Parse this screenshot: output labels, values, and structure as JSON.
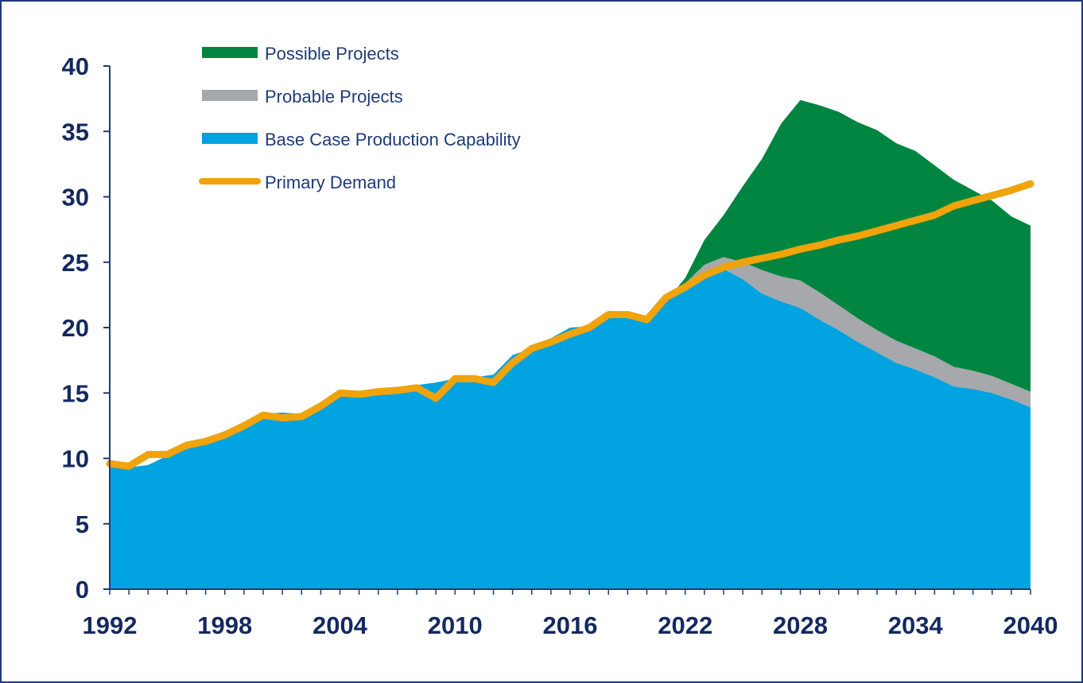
{
  "chart_data": {
    "type": "area",
    "title": "",
    "xlabel": "",
    "ylabel": "",
    "xlim": [
      1992,
      2040
    ],
    "ylim": [
      0,
      40
    ],
    "y_ticks": [
      0,
      5,
      10,
      15,
      20,
      25,
      30,
      35,
      40
    ],
    "x_tick_labels": [
      "1992",
      "1998",
      "2004",
      "2010",
      "2016",
      "2022",
      "2028",
      "2034",
      "2040"
    ],
    "x_tick_values": [
      1992,
      1998,
      2004,
      2010,
      2016,
      2022,
      2028,
      2034,
      2040
    ],
    "grid": false,
    "legend_position": "top-left",
    "stacked": true,
    "x": [
      1992,
      1993,
      1994,
      1995,
      1996,
      1997,
      1998,
      1999,
      2000,
      2001,
      2002,
      2003,
      2004,
      2005,
      2006,
      2007,
      2008,
      2009,
      2010,
      2011,
      2012,
      2013,
      2014,
      2015,
      2016,
      2017,
      2018,
      2019,
      2020,
      2021,
      2022,
      2023,
      2024,
      2025,
      2026,
      2027,
      2028,
      2029,
      2030,
      2031,
      2032,
      2033,
      2034,
      2035,
      2036,
      2037,
      2038,
      2039,
      2040
    ],
    "series": [
      {
        "name": "Base Case Production Capability",
        "kind": "area",
        "color": "#00a3e0",
        "values": [
          9.3,
          9.3,
          9.5,
          10.2,
          10.7,
          11.2,
          11.9,
          12.6,
          13.4,
          13.5,
          13.4,
          13.8,
          14.8,
          15.0,
          15.3,
          15.4,
          15.6,
          15.8,
          16.1,
          16.2,
          16.4,
          17.9,
          18.4,
          19.2,
          20.0,
          20.1,
          20.9,
          21.0,
          20.6,
          22.0,
          23.1,
          24.1,
          24.5,
          23.7,
          22.6,
          22.0,
          21.5,
          20.6,
          19.8,
          18.9,
          18.1,
          17.3,
          16.8,
          16.2,
          15.5,
          15.3,
          15.0,
          14.5,
          13.9
        ]
      },
      {
        "name": "Probable Projects",
        "kind": "area",
        "color": "#a6a8ab",
        "values": [
          0,
          0,
          0,
          0,
          0,
          0,
          0,
          0,
          0,
          0,
          0,
          0,
          0,
          0,
          0,
          0,
          0,
          0,
          0,
          0,
          0,
          0,
          0,
          0,
          0,
          0,
          0,
          0,
          0,
          0,
          0.3,
          0.7,
          0.9,
          1.3,
          1.8,
          1.9,
          2.1,
          2.1,
          1.9,
          1.8,
          1.7,
          1.7,
          1.6,
          1.6,
          1.5,
          1.4,
          1.3,
          1.2,
          1.2
        ]
      },
      {
        "name": "Possible Projects",
        "kind": "area",
        "color": "#008540",
        "values": [
          0,
          0,
          0,
          0,
          0,
          0,
          0,
          0,
          0,
          0,
          0,
          0,
          0,
          0,
          0,
          0,
          0,
          0,
          0,
          0,
          0,
          0,
          0,
          0,
          0,
          0,
          0,
          0,
          0,
          0,
          0.4,
          1.9,
          3.2,
          5.8,
          8.5,
          11.7,
          13.8,
          14.3,
          14.8,
          15.0,
          15.3,
          15.1,
          15.1,
          14.6,
          14.3,
          13.8,
          13.4,
          12.8,
          12.7
        ]
      },
      {
        "name": "Primary Demand",
        "kind": "line",
        "color": "#f0a30a",
        "values": [
          9.6,
          9.4,
          10.3,
          10.3,
          11.0,
          11.3,
          11.8,
          12.5,
          13.3,
          13.1,
          13.2,
          14.0,
          15.0,
          14.9,
          15.1,
          15.2,
          15.4,
          14.6,
          16.1,
          16.1,
          15.8,
          17.3,
          18.4,
          18.9,
          19.5,
          20.0,
          21.0,
          21.0,
          20.6,
          22.3,
          23.1,
          24.0,
          24.6,
          25.0,
          25.3,
          25.6,
          26.0,
          26.3,
          26.7,
          27.0,
          27.4,
          27.8,
          28.2,
          28.6,
          29.3,
          29.7,
          30.1,
          30.5,
          31.0
        ]
      }
    ],
    "legend": [
      {
        "label": "Possible Projects",
        "color": "#008540",
        "style": "thick-bar"
      },
      {
        "label": "Probable Projects",
        "color": "#a6a8ab",
        "style": "thick-bar"
      },
      {
        "label": "Base Case Production Capability",
        "color": "#00a3e0",
        "style": "thick-bar"
      },
      {
        "label": "Primary Demand",
        "color": "#f0a30a",
        "style": "line"
      }
    ],
    "axis_color": "#1f3a7a",
    "tick_label_color": "#14295f"
  }
}
